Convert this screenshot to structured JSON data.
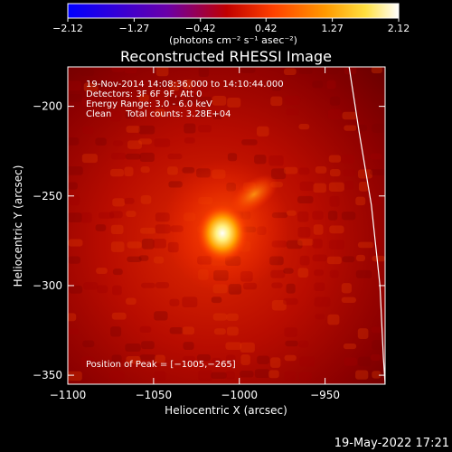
{
  "chart_data": {
    "type": "heatmap",
    "title": "Reconstructed RHESSI Image",
    "xlabel": "Heliocentric X (arcsec)",
    "ylabel": "Heliocentric Y (arcsec)",
    "xlim": [
      -1100,
      -915
    ],
    "ylim": [
      -355,
      -178
    ],
    "x_ticks": [
      -1100,
      -1050,
      -1000,
      -950
    ],
    "y_ticks": [
      -200,
      -250,
      -300,
      -350
    ],
    "x_tick_labels": [
      "−1100",
      "−1050",
      "−1000",
      "−950"
    ],
    "y_tick_labels": [
      "−200",
      "−250",
      "−300",
      "−350"
    ],
    "colorbar": {
      "range": [
        -2.12,
        2.12
      ],
      "ticks": [
        -2.12,
        -1.27,
        -0.42,
        0.42,
        1.27,
        2.12
      ],
      "tick_labels": [
        "−2.12",
        "−1.27",
        "−0.42",
        "0.42",
        "1.27",
        "2.12"
      ],
      "unit_label": "(photons cm⁻² s⁻¹ asec⁻²)",
      "colormap": [
        "#0000ff",
        "#6a00a8",
        "#cc0000",
        "#ff5000",
        "#ffb000",
        "#ffff80",
        "#ffffff"
      ]
    },
    "annotations": [
      "19-Nov-2014 14:08:36.000 to 14:10:44.000",
      "Detectors: 3F 6F 9F, Att 0",
      "Energy Range: 3.0 - 6.0 keV",
      "Clean     Total counts: 3.28E+04"
    ],
    "peak_label": "Position of Peak = [−1005,−265]",
    "peak": [
      -1005,
      -265
    ],
    "secondary_source": [
      -987,
      -246
    ],
    "limb_curve": [
      [
        -936,
        -178
      ],
      [
        -930,
        -215
      ],
      [
        -923,
        -255
      ],
      [
        -918,
        -300
      ],
      [
        -916,
        -340
      ],
      [
        -915,
        -355
      ]
    ]
  },
  "footer": {
    "timestamp": "19-May-2022 17:21"
  }
}
